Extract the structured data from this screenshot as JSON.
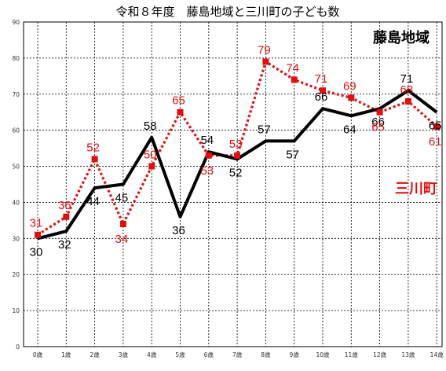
{
  "chart_data": {
    "type": "line",
    "title": "令和８年度　藤島地域と三川町の子ども数",
    "categories": [
      "0歳",
      "1歳",
      "2歳",
      "3歳",
      "4歳",
      "5歳",
      "6歳",
      "7歳",
      "8歳",
      "9歳",
      "10歳",
      "11歳",
      "12歳",
      "13歳",
      "14歳"
    ],
    "ylim": [
      0,
      90
    ],
    "yticks": [
      "0",
      "10",
      "20",
      "30",
      "40",
      "50",
      "60",
      "70",
      "80",
      "90"
    ],
    "grid": true,
    "series": [
      {
        "name": "藤島地域",
        "color": "#000000",
        "style": "solid",
        "marker": "none",
        "values": [
          30,
          32,
          44,
          45,
          58,
          36,
          54,
          52,
          57,
          57,
          66,
          64,
          66,
          71,
          65
        ]
      },
      {
        "name": "三川町",
        "color": "#e01010",
        "style": "dotted",
        "marker": "square",
        "values": [
          31,
          36,
          52,
          34,
          50,
          65,
          53,
          53,
          79,
          74,
          71,
          69,
          65,
          68,
          61
        ]
      }
    ]
  }
}
